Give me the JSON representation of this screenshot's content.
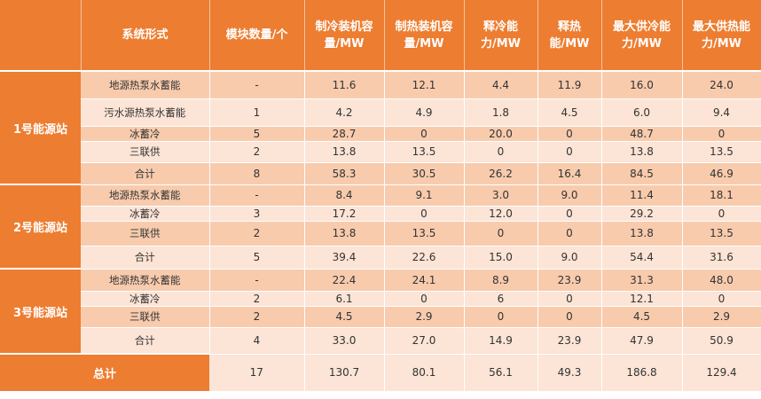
{
  "header": [
    "系统形式",
    "模块数量/个",
    "制冷装机容量/MW",
    "制热装机容量/MW",
    "释冷能力/MW",
    "释热能/MW",
    "最大供冷能力/MW",
    "最大供热能力/MW"
  ],
  "stations": [
    {
      "name": "1号能源站",
      "rows": [
        [
          "地源热泵水蓄能",
          "-",
          "11.6",
          "12.1",
          "4.4",
          "11.9",
          "16.0",
          "24.0"
        ],
        [
          "污水源热泵水蓄能",
          "1",
          "4.2",
          "4.9",
          "1.8",
          "4.5",
          "6.0",
          "9.4"
        ],
        [
          "冰蓄冷",
          "5",
          "28.7",
          "0",
          "20.0",
          "0",
          "48.7",
          "0"
        ],
        [
          "三联供",
          "2",
          "13.8",
          "13.5",
          "0",
          "0",
          "13.8",
          "13.5"
        ],
        [
          "合计",
          "8",
          "58.3",
          "30.5",
          "26.2",
          "16.4",
          "84.5",
          "46.9"
        ]
      ]
    },
    {
      "name": "2号能源站",
      "rows": [
        [
          "地源热泵水蓄能",
          "-",
          "8.4",
          "9.1",
          "3.0",
          "9.0",
          "11.4",
          "18.1"
        ],
        [
          "冰蓄冷",
          "3",
          "17.2",
          "0",
          "12.0",
          "0",
          "29.2",
          "0"
        ],
        [
          "三联供",
          "2",
          "13.8",
          "13.5",
          "0",
          "0",
          "13.8",
          "13.5"
        ],
        [
          "合计",
          "5",
          "39.4",
          "22.6",
          "15.0",
          "9.0",
          "54.4",
          "31.6"
        ]
      ]
    },
    {
      "name": "3号能源站",
      "rows": [
        [
          "地源热泵水蓄能",
          "-",
          "22.4",
          "24.1",
          "8.9",
          "23.9",
          "31.3",
          "48.0"
        ],
        [
          "冰蓄冷",
          "2",
          "6.1",
          "0",
          "6",
          "0",
          "12.1",
          "0"
        ],
        [
          "三联供",
          "2",
          "4.5",
          "2.9",
          "0",
          "0",
          "4.5",
          "2.9"
        ],
        [
          "合计",
          "4",
          "33.0",
          "27.0",
          "14.9",
          "23.9",
          "47.9",
          "50.9"
        ]
      ]
    }
  ],
  "total": {
    "label": "总计",
    "values": [
      "17",
      "130.7",
      "80.1",
      "56.1",
      "49.3",
      "186.8",
      "129.4"
    ]
  },
  "colors": {
    "accent": "#ED7D31",
    "row_dark": "#F8CBAD",
    "row_light": "#FCE4D6"
  }
}
